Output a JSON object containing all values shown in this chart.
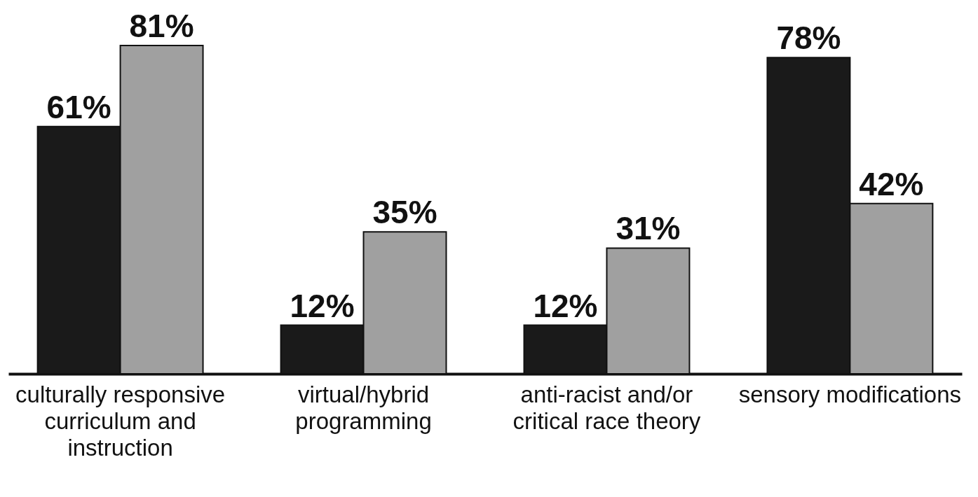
{
  "chart_data": {
    "type": "bar",
    "categories": [
      "culturally responsive curriculum and instruction",
      "virtual/hybrid programming",
      "anti-racist and/or critical race theory",
      "sensory modifications"
    ],
    "series": [
      {
        "color": "#1a1a1a",
        "values": [
          61,
          12,
          12,
          78
        ],
        "value_labels": [
          "61%",
          "12%",
          "12%",
          "78%"
        ]
      },
      {
        "color": "#a0a0a0",
        "values": [
          81,
          35,
          31,
          42
        ],
        "value_labels": [
          "81%",
          "35%",
          "31%",
          "42%"
        ]
      }
    ],
    "grid": false,
    "legend": false
  }
}
